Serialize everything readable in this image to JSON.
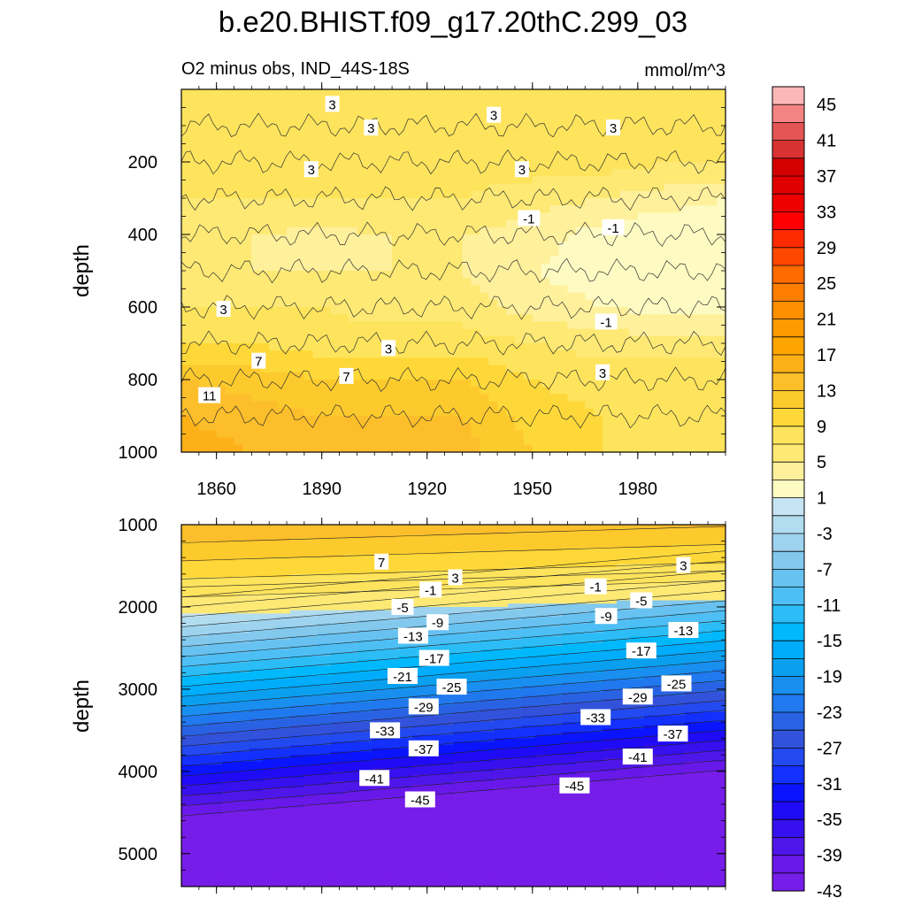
{
  "figure": {
    "title": "b.e20.BHIST.f09_g17.20thC.299_03",
    "subtitle_left": "O2 minus obs, IND_44S-18S",
    "subtitle_right": "mmol/m^3"
  },
  "colorbar": {
    "labels": [
      "45",
      "41",
      "37",
      "33",
      "29",
      "25",
      "21",
      "17",
      "13",
      "9",
      "5",
      "1",
      "-3",
      "-7",
      "-11",
      "-15",
      "-19",
      "-23",
      "-27",
      "-31",
      "-35",
      "-39",
      "-43"
    ],
    "colors": [
      "#fdb7b7",
      "#f48484",
      "#e45555",
      "#d93232",
      "#d40000",
      "#e10000",
      "#ef0000",
      "#fd0000",
      "#fe2a00",
      "#fe4800",
      "#fe6a00",
      "#fe7e00",
      "#fe8f00",
      "#fd9b00",
      "#fea500",
      "#feb018",
      "#fcbe2a",
      "#fdca2d",
      "#fed838",
      "#fee45c",
      "#fde974",
      "#fff09c",
      "#fefbc2",
      "#c6e4f4",
      "#b2dcf0",
      "#9ed3ef",
      "#83c9ee",
      "#68c2f1",
      "#4ebff4",
      "#2cbdf6",
      "#00b9fd",
      "#00acfc",
      "#0aa0ef",
      "#198ff0",
      "#2079ef",
      "#2963e4",
      "#3352dc",
      "#2349f0",
      "#1330ff",
      "#0a14ff",
      "#200bf6",
      "#3610ee",
      "#4f16e9",
      "#6818e9",
      "#771de9"
    ]
  },
  "chart_data": [
    {
      "type": "heatmap",
      "panel": "upper",
      "xlabel": "",
      "ylabel": "depth",
      "xlim": [
        1850,
        2005
      ],
      "ylim": [
        0,
        1000
      ],
      "y_inverted": true,
      "xticks": [
        "1860",
        "1890",
        "1920",
        "1950",
        "1980"
      ],
      "yticks": [
        "200",
        "400",
        "600",
        "800",
        "1000"
      ],
      "depths": [
        0,
        100,
        200,
        300,
        400,
        500,
        600,
        700,
        800,
        900,
        1000
      ],
      "x": [
        1850,
        1870,
        1890,
        1910,
        1930,
        1950,
        1970,
        1990,
        2005
      ],
      "z": [
        [
          3,
          3,
          3,
          3,
          3,
          3,
          3,
          3,
          3
        ],
        [
          3,
          3,
          3,
          3,
          3,
          3,
          3,
          3,
          3
        ],
        [
          4,
          4,
          4,
          4,
          4,
          4,
          4,
          3,
          3
        ],
        [
          3,
          3,
          3,
          3,
          3,
          2,
          1,
          0,
          -1
        ],
        [
          1,
          1,
          0.5,
          1,
          1,
          0,
          -2,
          -3,
          -3
        ],
        [
          1,
          1,
          1,
          1,
          1,
          -1,
          -2,
          -3,
          -3
        ],
        [
          3,
          3,
          3,
          2,
          2,
          0,
          -1,
          -2,
          -2
        ],
        [
          5,
          5,
          4,
          4,
          4,
          3,
          2,
          2,
          2
        ],
        [
          9,
          8,
          7,
          7,
          7,
          5,
          4,
          4,
          4
        ],
        [
          11,
          10,
          9,
          9,
          9,
          6,
          5,
          4,
          4
        ],
        [
          12,
          11,
          10,
          10,
          10,
          7,
          5,
          4,
          4
        ]
      ],
      "contour_labels": [
        {
          "text": "3",
          "x": 1893,
          "y": 40
        },
        {
          "text": "3",
          "x": 1904,
          "y": 105
        },
        {
          "text": "3",
          "x": 1939,
          "y": 70
        },
        {
          "text": "3",
          "x": 1973,
          "y": 105
        },
        {
          "text": "3",
          "x": 1887,
          "y": 220
        },
        {
          "text": "3",
          "x": 1947,
          "y": 220
        },
        {
          "text": "-1",
          "x": 1949,
          "y": 355
        },
        {
          "text": "-1",
          "x": 1973,
          "y": 380
        },
        {
          "text": "-1",
          "x": 1971,
          "y": 640
        },
        {
          "text": "3",
          "x": 1862,
          "y": 605
        },
        {
          "text": "3",
          "x": 1909,
          "y": 713
        },
        {
          "text": "3",
          "x": 1970,
          "y": 780
        },
        {
          "text": "7",
          "x": 1872,
          "y": 748
        },
        {
          "text": "7",
          "x": 1897,
          "y": 790
        },
        {
          "text": "11",
          "x": 1858,
          "y": 843
        }
      ]
    },
    {
      "type": "heatmap",
      "panel": "lower",
      "xlabel": "",
      "ylabel": "depth",
      "xlim": [
        1850,
        2005
      ],
      "ylim": [
        1000,
        5400
      ],
      "y_inverted": true,
      "xticks": [],
      "yticks": [
        "1000",
        "2000",
        "3000",
        "4000",
        "5000"
      ],
      "contour_labels": [
        {
          "text": "7",
          "x": 1907,
          "y": 1450
        },
        {
          "text": "3",
          "x": 1928,
          "y": 1640
        },
        {
          "text": "-1",
          "x": 1921,
          "y": 1790
        },
        {
          "text": "-5",
          "x": 1913,
          "y": 2000
        },
        {
          "text": "-9",
          "x": 1923,
          "y": 2185
        },
        {
          "text": "-13",
          "x": 1916,
          "y": 2350
        },
        {
          "text": "-17",
          "x": 1922,
          "y": 2620
        },
        {
          "text": "-21",
          "x": 1913,
          "y": 2840
        },
        {
          "text": "-25",
          "x": 1927,
          "y": 2970
        },
        {
          "text": "-29",
          "x": 1919,
          "y": 3210
        },
        {
          "text": "-33",
          "x": 1908,
          "y": 3500
        },
        {
          "text": "-37",
          "x": 1919,
          "y": 3720
        },
        {
          "text": "-41",
          "x": 1905,
          "y": 4080
        },
        {
          "text": "-45",
          "x": 1918,
          "y": 4340
        },
        {
          "text": "3",
          "x": 1993,
          "y": 1490
        },
        {
          "text": "-1",
          "x": 1968,
          "y": 1750
        },
        {
          "text": "-5",
          "x": 1981,
          "y": 1920
        },
        {
          "text": "-9",
          "x": 1971,
          "y": 2110
        },
        {
          "text": "-13",
          "x": 1993,
          "y": 2280
        },
        {
          "text": "-17",
          "x": 1981,
          "y": 2530
        },
        {
          "text": "-25",
          "x": 1991,
          "y": 2930
        },
        {
          "text": "-29",
          "x": 1980,
          "y": 3090
        },
        {
          "text": "-33",
          "x": 1968,
          "y": 3340
        },
        {
          "text": "-37",
          "x": 1990,
          "y": 3540
        },
        {
          "text": "-41",
          "x": 1980,
          "y": 3820
        },
        {
          "text": "-45",
          "x": 1962,
          "y": 4170
        }
      ]
    }
  ]
}
